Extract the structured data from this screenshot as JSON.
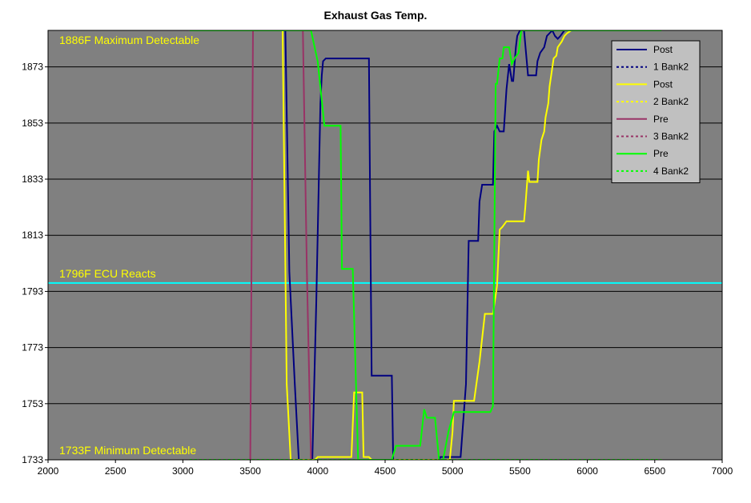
{
  "chart_data": {
    "type": "line",
    "title": "Exhaust Gas Temp.",
    "xlabel": "",
    "ylabel": "",
    "xlim": [
      2000,
      7000
    ],
    "ylim": [
      1733,
      1886
    ],
    "x_ticks": [
      2000,
      2500,
      3000,
      3500,
      4000,
      4500,
      5000,
      5500,
      6000,
      6500,
      7000
    ],
    "y_ticks": [
      1733,
      1753,
      1773,
      1793,
      1813,
      1833,
      1853,
      1873
    ],
    "grid": "horizontal",
    "background": "#808080",
    "legend_position": "top-right",
    "legend": [
      {
        "label": "Post",
        "color": "#000080",
        "dash": false
      },
      {
        "label": "1 Bank2",
        "color": "#000080",
        "dash": true
      },
      {
        "label": "Post",
        "color": "#ffff00",
        "dash": false
      },
      {
        "label": "2 Bank2",
        "color": "#ffff00",
        "dash": true
      },
      {
        "label": "Pre",
        "color": "#993366",
        "dash": false
      },
      {
        "label": "3 Bank2",
        "color": "#993366",
        "dash": true
      },
      {
        "label": "Pre",
        "color": "#00ff00",
        "dash": false
      },
      {
        "label": "4 Bank2",
        "color": "#00ff00",
        "dash": true
      }
    ],
    "reference_lines": [
      {
        "label": "1796F ECU Reacts",
        "y": 1796,
        "color": "#00ffff"
      }
    ],
    "annotations": [
      {
        "text": "1886F Maximum Detectable",
        "y": 1886
      },
      {
        "text": "1733F Minimum Detectable",
        "y": 1733
      }
    ],
    "series": [
      {
        "name": "Post 1 Bank2",
        "color": "#000080",
        "dash": false,
        "x": [
          3760,
          3790,
          3830,
          3860,
          3960,
          3990,
          4020,
          4030,
          4040,
          4060,
          4380,
          4390,
          4400,
          4450,
          4550,
          4560,
          4900,
          4910,
          5060,
          5100,
          5120,
          5190,
          5200,
          5220,
          5250,
          5270,
          5300,
          5310,
          5330,
          5350,
          5380,
          5400,
          5420,
          5440,
          5450,
          5470,
          5480,
          5500,
          5510,
          5530,
          5560,
          5580,
          5620,
          5630,
          5650,
          5680,
          5700,
          5720,
          5740,
          5760,
          5780,
          5800,
          5830,
          6000
        ],
        "y": [
          1886,
          1800,
          1760,
          1733,
          1733,
          1790,
          1860,
          1870,
          1875,
          1876,
          1876,
          1818,
          1763,
          1763,
          1763,
          1733,
          1733,
          1734,
          1734,
          1760,
          1811,
          1811,
          1825,
          1831,
          1831,
          1831,
          1831,
          1850,
          1852,
          1850,
          1850,
          1865,
          1874,
          1868,
          1868,
          1880,
          1884,
          1886,
          1886,
          1886,
          1870,
          1870,
          1870,
          1875,
          1878,
          1880,
          1884,
          1885,
          1886,
          1884,
          1883,
          1884,
          1886,
          1886
        ]
      },
      {
        "name": "1 Bank2",
        "color": "#000080",
        "dash": true,
        "x": [
          3050,
          6000
        ],
        "y": [
          1733,
          1733
        ]
      },
      {
        "name": "Post 2 Bank2",
        "color": "#ffff00",
        "dash": false,
        "x": [
          3050,
          3740,
          3770,
          3800,
          3980,
          4000,
          4250,
          4270,
          4330,
          4340,
          4380,
          4400,
          4430,
          4500,
          4980,
          5000,
          5010,
          5160,
          5200,
          5240,
          5300,
          5330,
          5350,
          5370,
          5400,
          5430,
          5480,
          5530,
          5540,
          5560,
          5570,
          5630,
          5640,
          5660,
          5680,
          5690,
          5710,
          5720,
          5750,
          5770,
          5780,
          5810,
          5830,
          5850,
          5880,
          5920,
          6000
        ],
        "y": [
          1886,
          1886,
          1760,
          1733,
          1733,
          1734,
          1734,
          1757,
          1757,
          1734,
          1734,
          1733,
          1733,
          1733,
          1733,
          1743,
          1754,
          1754,
          1768,
          1785,
          1785,
          1795,
          1815,
          1816,
          1818,
          1818,
          1818,
          1818,
          1823,
          1836,
          1832,
          1832,
          1840,
          1847,
          1850,
          1855,
          1860,
          1866,
          1876,
          1877,
          1880,
          1882,
          1884,
          1885,
          1886,
          1886,
          1886
        ]
      },
      {
        "name": "2 Bank2",
        "color": "#ffff00",
        "dash": true,
        "x": [
          3050,
          6550
        ],
        "y": [
          1733,
          1733
        ]
      },
      {
        "name": "Pre 3 Bank2",
        "color": "#993366",
        "dash": false,
        "x": [
          3500,
          3520,
          3870,
          3890,
          3920,
          3950
        ],
        "y": [
          1733,
          1886,
          1886,
          1886,
          1800,
          1733
        ]
      },
      {
        "name": "3 Bank2",
        "color": "#993366",
        "dash": true,
        "x": [
          3050,
          6300
        ],
        "y": [
          1733,
          1733
        ]
      },
      {
        "name": "Pre 4 Bank2",
        "color": "#00ff00",
        "dash": false,
        "x": [
          3050,
          3950,
          4000,
          4050,
          4170,
          4180,
          4260,
          4300,
          4550,
          4580,
          4760,
          4790,
          4810,
          4820,
          4870,
          4900,
          4930,
          4970,
          5010,
          5040,
          5280,
          5300,
          5320,
          5330,
          5350,
          5370,
          5380,
          5420,
          5440,
          5460,
          5490,
          5510,
          5530,
          5560,
          5600,
          5800,
          6550
        ],
        "y": [
          1886,
          1886,
          1875,
          1852,
          1852,
          1801,
          1801,
          1733,
          1733,
          1738,
          1738,
          1751,
          1748,
          1748,
          1748,
          1733,
          1733,
          1743,
          1750,
          1750,
          1750,
          1752,
          1867,
          1867,
          1876,
          1876,
          1880,
          1880,
          1874,
          1876,
          1878,
          1886,
          1886,
          1886,
          1886,
          1886,
          1886
        ]
      },
      {
        "name": "4 Bank2",
        "color": "#00ff00",
        "dash": true,
        "x": [
          3050,
          6550
        ],
        "y": [
          1733,
          1733
        ]
      }
    ]
  }
}
